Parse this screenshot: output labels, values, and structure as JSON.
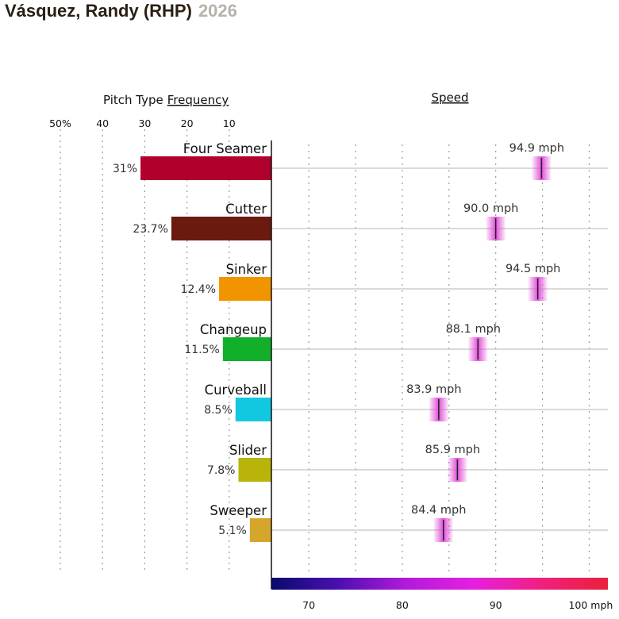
{
  "title": {
    "name": "Vásquez, Randy (RHP)",
    "year": "2026"
  },
  "headers": {
    "freq_prefix": "Pitch Type",
    "freq_link": "Frequency",
    "speed_link": "Speed"
  },
  "freq_ticks": [
    "50%",
    "40",
    "30",
    "20",
    "10"
  ],
  "speed_ticks": [
    "70",
    "80",
    "90",
    "100 mph"
  ],
  "colors": {
    "gradient": [
      "#0a0a6e",
      "#4b0fb0",
      "#b31ad9",
      "#e61fe0",
      "#f0207f",
      "#e8213a"
    ],
    "marker": "#e14fd9"
  },
  "chart_data": [
    {
      "type": "bar",
      "title": "Pitch Type Frequency",
      "categories": [
        "Four Seamer",
        "Cutter",
        "Sinker",
        "Changeup",
        "Curveball",
        "Slider",
        "Sweeper"
      ],
      "values": [
        31,
        23.7,
        12.4,
        11.5,
        8.5,
        7.8,
        5.1
      ],
      "labels": [
        "31%",
        "23.7%",
        "12.4%",
        "11.5%",
        "8.5%",
        "7.8%",
        "5.1%"
      ],
      "colors": [
        "#b0002b",
        "#6b1a10",
        "#f29400",
        "#12b02a",
        "#12c8e0",
        "#b8b40a",
        "#d4a62c"
      ],
      "xlim": [
        0,
        50
      ],
      "orientation": "horizontal-reversed"
    },
    {
      "type": "scatter",
      "title": "Speed",
      "categories": [
        "Four Seamer",
        "Cutter",
        "Sinker",
        "Changeup",
        "Curveball",
        "Slider",
        "Sweeper"
      ],
      "values": [
        94.9,
        90.0,
        94.5,
        88.1,
        83.9,
        85.9,
        84.4
      ],
      "labels": [
        "94.9 mph",
        "90.0 mph",
        "94.5 mph",
        "88.1 mph",
        "83.9 mph",
        "85.9 mph",
        "84.4 mph"
      ],
      "xlim": [
        66,
        102
      ],
      "xlabel": "mph"
    }
  ]
}
